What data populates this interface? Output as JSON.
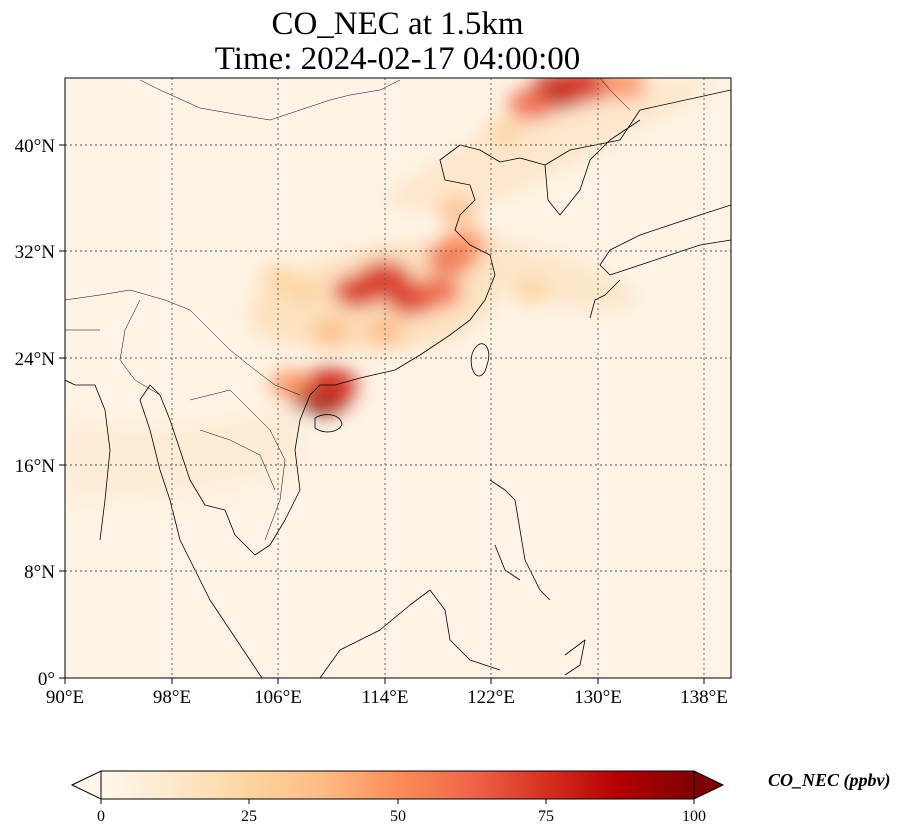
{
  "title": {
    "line1": "CO_NEC at 1.5km",
    "line2": "Time: 2024-02-17 04:00:00"
  },
  "map": {
    "region": "East and Southeast Asia",
    "extent_lon": [
      90,
      140
    ],
    "extent_lat": [
      0,
      45
    ],
    "grid": true,
    "grid_style": "dotted",
    "lon_ticks": [
      "90°E",
      "98°E",
      "106°E",
      "114°E",
      "122°E",
      "130°E",
      "138°E"
    ],
    "lat_ticks": [
      "0°",
      "8°N",
      "16°N",
      "24°N",
      "32°N",
      "40°N"
    ],
    "hotspots": [
      {
        "lon": 109.2,
        "lat": 21.2,
        "level": 1.0
      },
      {
        "lon": 110,
        "lat": 22,
        "level": 0.8
      },
      {
        "lon": 112,
        "lat": 29,
        "level": 0.7
      },
      {
        "lon": 114,
        "lat": 30,
        "level": 0.75
      },
      {
        "lon": 116,
        "lat": 28.5,
        "level": 0.75
      },
      {
        "lon": 118,
        "lat": 29,
        "level": 0.6
      },
      {
        "lon": 119,
        "lat": 31.5,
        "level": 0.65
      },
      {
        "lon": 120,
        "lat": 32.5,
        "level": 0.55
      },
      {
        "lon": 107,
        "lat": 22,
        "level": 0.45
      },
      {
        "lon": 110,
        "lat": 26,
        "level": 0.35
      },
      {
        "lon": 114,
        "lat": 26,
        "level": 0.4
      },
      {
        "lon": 119.5,
        "lat": 35,
        "level": 0.35
      },
      {
        "lon": 127,
        "lat": 44,
        "level": 0.85
      },
      {
        "lon": 129,
        "lat": 44.5,
        "level": 0.8
      },
      {
        "lon": 125,
        "lat": 43,
        "level": 0.6
      },
      {
        "lon": 123,
        "lat": 41,
        "level": 0.3
      },
      {
        "lon": 132,
        "lat": 44.5,
        "level": 0.5
      },
      {
        "lon": 125,
        "lat": 29,
        "level": 0.25
      },
      {
        "lon": 106,
        "lat": 30,
        "level": 0.3
      },
      {
        "lon": 108,
        "lat": 29,
        "level": 0.3
      }
    ]
  },
  "colorbar": {
    "label": "CO_NEC (ppbv)",
    "min": 0,
    "max": 100,
    "ticks": [
      "0",
      "25",
      "50",
      "75",
      "100"
    ],
    "colormap": "OrRd",
    "extend": "both",
    "colors": [
      "#fff7ec",
      "#fee8c8",
      "#fdd49e",
      "#fdbb84",
      "#fc8d59",
      "#ef6548",
      "#d7301f",
      "#b30000",
      "#7f0000"
    ]
  }
}
